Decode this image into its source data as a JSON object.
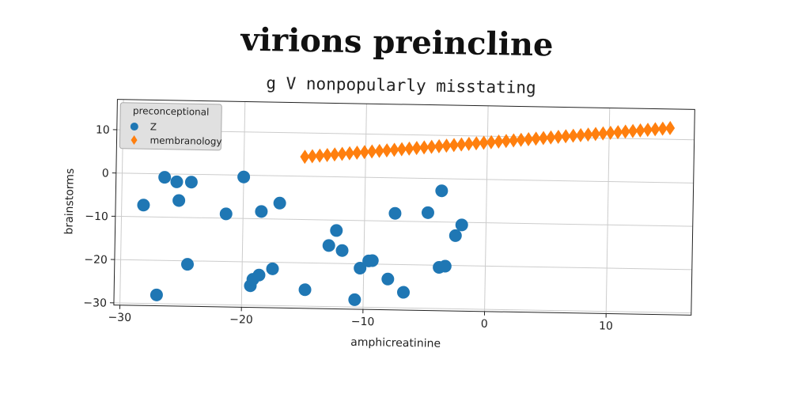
{
  "title": "virions preincline",
  "subtitle": "g V nonpopularly misstating",
  "chart_data": {
    "type": "scatter",
    "xlabel": "amphicreatinine",
    "ylabel": "brainstorms",
    "xlim": [
      -30.5,
      17
    ],
    "ylim": [
      -30.5,
      17
    ],
    "xticks": [
      -30,
      -20,
      -10,
      0,
      10
    ],
    "yticks": [
      10,
      0,
      -10,
      -20,
      -30
    ],
    "grid": true,
    "legend": {
      "title": "preconceptional",
      "placement": "top-left"
    },
    "series": [
      {
        "name": "Z",
        "marker": "circle",
        "color": "#1f77b4",
        "points": [
          [
            -26.5,
            -0.8
          ],
          [
            -25.5,
            -1.8
          ],
          [
            -24.3,
            -1.8
          ],
          [
            -28.2,
            -7.3
          ],
          [
            -25.3,
            -6.1
          ],
          [
            -24.5,
            -20.8
          ],
          [
            -27.0,
            -28.0
          ],
          [
            -21.4,
            -9.0
          ],
          [
            -20.0,
            -0.4
          ],
          [
            -19.3,
            -25.5
          ],
          [
            -19.1,
            -24.0
          ],
          [
            -18.6,
            -23.0
          ],
          [
            -18.5,
            -8.3
          ],
          [
            -17.5,
            -21.5
          ],
          [
            -17.0,
            -6.3
          ],
          [
            -14.8,
            -26.2
          ],
          [
            -12.9,
            -15.9
          ],
          [
            -12.3,
            -12.4
          ],
          [
            -11.8,
            -17.0
          ],
          [
            -10.7,
            -28.3
          ],
          [
            -10.3,
            -21.0
          ],
          [
            -9.6,
            -19.3
          ],
          [
            -9.3,
            -19.2
          ],
          [
            -8.0,
            -23.4
          ],
          [
            -7.5,
            -8.2
          ],
          [
            -6.7,
            -26.4
          ],
          [
            -4.8,
            -7.9
          ],
          [
            -3.7,
            -2.8
          ],
          [
            -3.8,
            -20.5
          ],
          [
            -3.3,
            -20.2
          ],
          [
            -2.5,
            -13.1
          ],
          [
            -2.0,
            -10.6
          ]
        ]
      },
      {
        "name": "membranology",
        "marker": "diamond",
        "color": "#ff7f0e",
        "x_start": -15,
        "x_end": 15,
        "y_start": 4.5,
        "y_end": 12.6,
        "count": 50
      }
    ]
  }
}
